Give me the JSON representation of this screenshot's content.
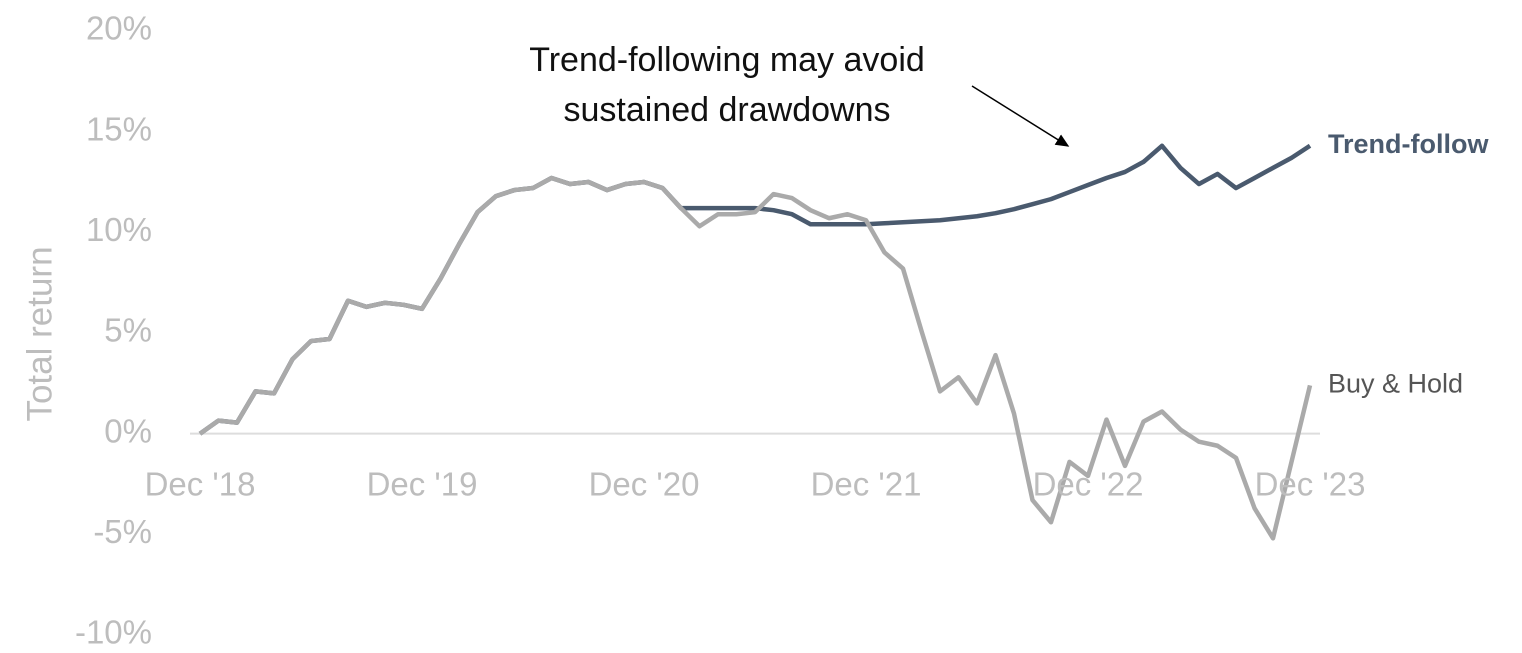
{
  "chart_data": {
    "type": "line",
    "annotation": [
      "Trend-following may avoid",
      "sustained drawdowns"
    ],
    "y_label": "Total return",
    "categories": [
      "Dec '18",
      null,
      null,
      null,
      null,
      null,
      null,
      null,
      null,
      null,
      null,
      null,
      "Dec '19",
      null,
      null,
      null,
      null,
      null,
      null,
      null,
      null,
      null,
      null,
      null,
      "Dec '20",
      null,
      null,
      null,
      null,
      null,
      null,
      null,
      null,
      null,
      null,
      null,
      "Dec '21",
      null,
      null,
      null,
      null,
      null,
      null,
      null,
      null,
      null,
      null,
      null,
      "Dec '22",
      null,
      null,
      null,
      null,
      null,
      null,
      null,
      null,
      null,
      null,
      null,
      "Dec '23"
    ],
    "series": [
      {
        "name": "Trend-follow",
        "color": "#4a5a6e",
        "values": [
          0,
          0.65,
          0.55,
          2.1,
          2.0,
          3.7,
          4.6,
          4.7,
          6.6,
          6.3,
          6.5,
          6.4,
          6.2,
          7.7,
          9.4,
          11.0,
          11.8,
          12.1,
          12.2,
          12.7,
          12.4,
          12.5,
          12.1,
          12.4,
          12.5,
          12.2,
          11.2,
          11.2,
          11.2,
          11.2,
          11.2,
          11.1,
          10.9,
          10.4,
          10.4,
          10.4,
          10.4,
          10.45,
          10.5,
          10.55,
          10.6,
          10.7,
          10.8,
          10.95,
          11.15,
          11.4,
          11.65,
          12.0,
          12.35,
          12.7,
          13.0,
          13.5,
          14.3,
          13.2,
          12.4,
          12.9,
          12.2,
          12.7,
          13.2,
          13.7,
          14.3
        ]
      },
      {
        "name": "Buy & Hold",
        "color": "#aaaaaa",
        "values": [
          0,
          0.65,
          0.55,
          2.1,
          2.0,
          3.7,
          4.6,
          4.7,
          6.6,
          6.3,
          6.5,
          6.4,
          6.2,
          7.7,
          9.4,
          11.0,
          11.8,
          12.1,
          12.2,
          12.7,
          12.4,
          12.5,
          12.1,
          12.4,
          12.5,
          12.2,
          11.2,
          10.3,
          10.9,
          10.9,
          11.0,
          11.9,
          11.7,
          11.1,
          10.7,
          10.9,
          10.6,
          9.0,
          8.2,
          5.1,
          2.1,
          2.8,
          1.5,
          3.9,
          1.0,
          -3.3,
          -4.4,
          -1.4,
          -2.1,
          0.7,
          -1.6,
          0.6,
          1.1,
          0.2,
          -0.4,
          -0.6,
          -1.2,
          -3.7,
          -5.2,
          -1.4,
          2.4
        ]
      }
    ],
    "ylim": [
      -10,
      20
    ],
    "yticks": [
      {
        "value": 20,
        "label": "20%"
      },
      {
        "value": 15,
        "label": "15%"
      },
      {
        "value": 10,
        "label": "10%"
      },
      {
        "value": 5,
        "label": "5%"
      },
      {
        "value": 0,
        "label": "0%"
      },
      {
        "value": -5,
        "label": "-5%"
      },
      {
        "value": -10,
        "label": "-10%"
      }
    ]
  }
}
